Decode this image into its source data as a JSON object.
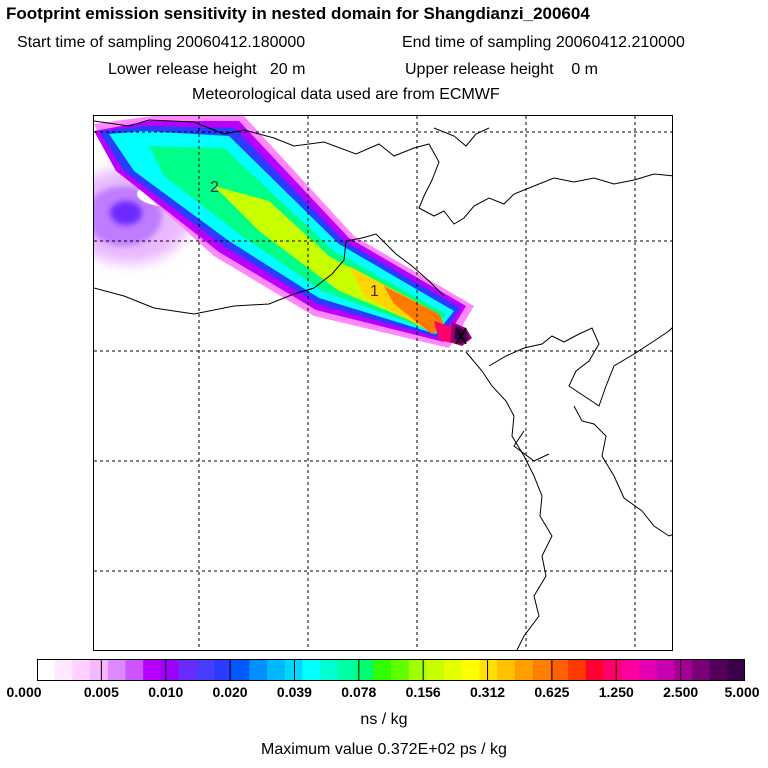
{
  "header": {
    "title": "Footprint emission sensitivity in nested domain for Shangdianzi_200604",
    "start_label": "Start time of sampling 20060412.180000",
    "end_label": "End time of sampling 20060412.210000",
    "lower_label": "Lower release height   20 m",
    "upper_label": "Upper release height    0 m",
    "met_label": "Meteorological data used are from ECMWF"
  },
  "map": {
    "contour_labels": [
      "2",
      "1"
    ],
    "plume_colors": [
      "#b800ff",
      "#00ffff",
      "#00ff88",
      "#c8ff00",
      "#ffd400",
      "#ff7a00",
      "#9c0070",
      "#3c0048"
    ],
    "coast_color": "#000000",
    "grid_color": "#000000"
  },
  "colorbar": {
    "colors": [
      "#ffffff",
      "#ffe8ff",
      "#ffd0ff",
      "#f4b8ff",
      "#dd88ff",
      "#cc55ff",
      "#b800ff",
      "#9d00ff",
      "#6a2bff",
      "#4a3dff",
      "#2a3cff",
      "#005aff",
      "#0090ff",
      "#00b8ff",
      "#00d8ff",
      "#00ffff",
      "#00ffd0",
      "#00ffa0",
      "#00ff70",
      "#30ff00",
      "#60ff00",
      "#a0ff00",
      "#c8ff00",
      "#e6ff00",
      "#ffff00",
      "#ffe000",
      "#ffc000",
      "#ffa000",
      "#ff8000",
      "#ff6000",
      "#ff3a00",
      "#ff0030",
      "#ff006a",
      "#ff00a0",
      "#e600b4",
      "#c800b0",
      "#a30096",
      "#7c0076",
      "#540058",
      "#3c0048"
    ],
    "ticks": [
      "0.000",
      "0.005",
      "0.010",
      "0.020",
      "0.039",
      "0.078",
      "0.156",
      "0.312",
      "0.625",
      "1.250",
      "2.500",
      "5.000"
    ]
  },
  "units": "ns / kg",
  "max_value": "Maximum value  0.372E+02 ps / kg"
}
